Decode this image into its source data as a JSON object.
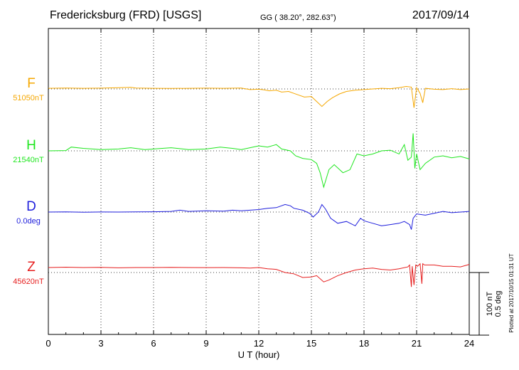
{
  "header": {
    "station": "Fredericksburg (FRD)  [USGS]",
    "coords": "GG ( 38.20°, 282.63°)",
    "date": "2017/09/14"
  },
  "footer_note": "Plotted at 2017/10/15 01:31  UT",
  "scale_labels": [
    "100 nT",
    "0.5 deg"
  ],
  "chart_data": {
    "type": "line",
    "xlabel": "U T (hour)",
    "xlim": [
      0,
      24
    ],
    "xticks": [
      "0",
      "3",
      "6",
      "9",
      "12",
      "15",
      "18",
      "21",
      "24"
    ],
    "grid": "dotted",
    "series": [
      {
        "name": "F",
        "baseline_label": "51050nT",
        "color": "#f5a700",
        "x": [
          0,
          1,
          2,
          3,
          4,
          4.7,
          5,
          6,
          7,
          8,
          9,
          10,
          11,
          11.5,
          12,
          12.3,
          12.6,
          13,
          13.3,
          13.7,
          14,
          14.3,
          14.6,
          15,
          15.3,
          15.6,
          15.9,
          16.2,
          16.6,
          17,
          17.5,
          18,
          18.5,
          19,
          19.5,
          20,
          20.4,
          20.7,
          20.85,
          21,
          21.2,
          21.35,
          21.5,
          22,
          22.5,
          23,
          23.5,
          24
        ],
        "values": [
          1,
          1.5,
          1,
          1.2,
          2,
          2.5,
          1.5,
          1,
          0.8,
          1,
          1.2,
          1,
          1.5,
          -1,
          -0.5,
          -1.5,
          -3,
          -2,
          -5,
          -4,
          -7,
          -10,
          -13,
          -12,
          -20,
          -28,
          -20,
          -14,
          -8,
          -4,
          -2,
          -1,
          0,
          1,
          0.5,
          2,
          4,
          3,
          -30,
          2,
          -7,
          -22,
          1,
          -0.5,
          -1,
          0.5,
          -1,
          0
        ]
      },
      {
        "name": "H",
        "baseline_label": "21540nT",
        "color": "#1ee61e",
        "x": [
          0,
          1,
          1.3,
          2,
          3,
          4,
          4.7,
          5.5,
          6,
          7,
          8,
          9,
          9.8,
          10.5,
          11,
          11.5,
          12,
          12.5,
          13,
          13.3,
          13.8,
          14.1,
          14.5,
          15,
          15.3,
          15.5,
          15.7,
          16,
          16.3,
          16.8,
          17.2,
          17.6,
          18,
          18.5,
          19,
          19.5,
          20,
          20.3,
          20.5,
          20.7,
          20.8,
          20.9,
          21,
          21.2,
          21.5,
          22,
          22.5,
          23,
          23.5,
          24
        ],
        "values": [
          0,
          0.5,
          6,
          4,
          2,
          3,
          5,
          2,
          3,
          5,
          2,
          3,
          6,
          4,
          2,
          5,
          8,
          6,
          10,
          3,
          0,
          -8,
          -12,
          -14,
          -20,
          -35,
          -58,
          -30,
          -22,
          -35,
          -30,
          -5,
          -8,
          -5,
          0,
          1,
          -5,
          10,
          -15,
          -10,
          28,
          -28,
          -5,
          -30,
          -20,
          -10,
          -8,
          -11,
          -9,
          -13
        ]
      },
      {
        "name": "D",
        "baseline_label": "0.0deg",
        "color": "#1e1edc",
        "x": [
          0,
          1,
          2,
          3,
          4,
          5,
          6,
          7,
          7.5,
          8,
          9,
          10,
          10.5,
          11,
          11.5,
          12,
          12.5,
          13,
          13.5,
          13.8,
          14,
          14.5,
          14.9,
          15.1,
          15.4,
          15.6,
          15.8,
          16.1,
          16.5,
          17,
          17.5,
          17.8,
          18,
          18.5,
          19,
          19.5,
          20,
          20.3,
          20.6,
          20.7,
          20.8,
          21,
          21.5,
          22,
          22.5,
          23,
          23.5,
          24
        ],
        "values": [
          0,
          0.2,
          -0.3,
          0.1,
          0,
          0.2,
          0.5,
          1,
          3,
          1,
          2,
          1.5,
          3,
          2,
          3,
          4,
          6,
          7,
          12,
          10,
          6,
          3,
          -2,
          -8,
          0,
          12,
          5,
          -10,
          -18,
          -15,
          -22,
          -10,
          -14,
          -18,
          -22,
          -20,
          -18,
          -15,
          -20,
          -28,
          -10,
          -3,
          -5,
          -2,
          1,
          -1,
          0,
          1
        ]
      },
      {
        "name": "Z",
        "baseline_label": "45620nT",
        "color": "#e61e1e",
        "x": [
          0,
          1,
          2,
          3,
          4,
          5,
          6,
          7,
          8,
          9,
          10,
          11,
          11.5,
          12,
          12.5,
          13,
          13.5,
          14,
          14.5,
          15,
          15.3,
          15.7,
          16,
          16.5,
          17,
          17.5,
          18,
          18.5,
          19,
          19.5,
          20,
          20.5,
          20.6,
          20.7,
          20.75,
          20.85,
          20.95,
          21.05,
          21.2,
          21.3,
          21.35,
          21.45,
          22,
          22.5,
          23,
          23.5,
          24
        ],
        "values": [
          8,
          8.5,
          8,
          8.2,
          7.5,
          8,
          8,
          8.3,
          8,
          7.8,
          8,
          7.5,
          7,
          8,
          6,
          5,
          0,
          -2,
          -8,
          -7,
          -5,
          -15,
          -12,
          -5,
          0,
          4,
          6,
          7,
          5,
          4,
          6,
          9,
          12,
          -23,
          10,
          -20,
          12,
          10,
          14,
          -18,
          14,
          12,
          12,
          10,
          10,
          9,
          13
        ]
      }
    ]
  }
}
